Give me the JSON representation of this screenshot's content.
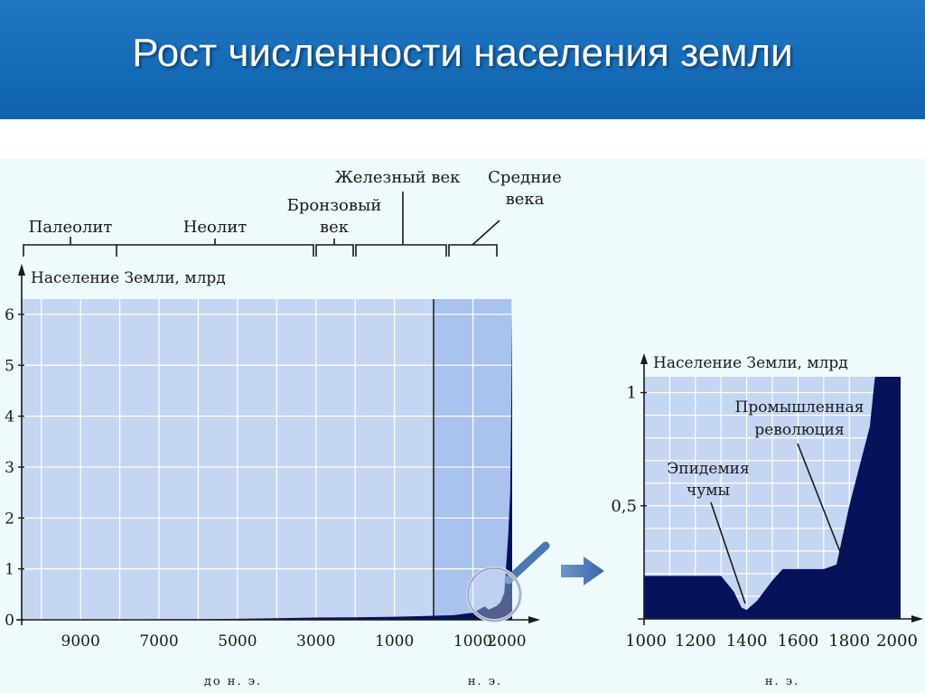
{
  "slide": {
    "title": "Рост численности населения земли"
  },
  "colors": {
    "title_bar": "#1576c0",
    "plot_fill": "#c5d6f3",
    "plot_fill_recent": "#a9c2ee",
    "population_fill": "#06125a",
    "grid": "#ffffff",
    "arrow": "#4b77b3"
  },
  "eras": {
    "paleolithic": "Палеолит",
    "neolithic": "Неолит",
    "bronze_line1": "Бронзовый",
    "bronze_line2": "век",
    "iron": "Железный век",
    "middle_line1": "Средние",
    "middle_line2": "века"
  },
  "chart_data": [
    {
      "type": "area",
      "ylabel": "Население Земли, млрд",
      "xlabel_bc": "до н. э.",
      "xlabel_ad": "н. э.",
      "x_tick_labels": [
        "9000",
        "7000",
        "5000",
        "3000",
        "1000",
        "1000",
        "2000"
      ],
      "y_tick_labels": [
        "0",
        "1",
        "2",
        "3",
        "4",
        "5",
        "6"
      ],
      "ylim": [
        0,
        6.3
      ],
      "x_start": -10500,
      "x_end": 2000,
      "grid": true,
      "highlight_from": 0,
      "series": [
        {
          "x": [
            -10500,
            -9000,
            -8000,
            -7000,
            -6000,
            -5000,
            -4000,
            -3000,
            -2000,
            -1000,
            -500,
            0,
            500,
            1000,
            1300,
            1400,
            1600,
            1700,
            1800,
            1850,
            1900,
            1950,
            1975,
            2000
          ],
          "y": [
            0.004,
            0.005,
            0.006,
            0.01,
            0.01,
            0.02,
            0.03,
            0.045,
            0.05,
            0.06,
            0.07,
            0.08,
            0.09,
            0.14,
            0.26,
            0.2,
            0.27,
            0.34,
            0.53,
            1.1,
            1.7,
            2.5,
            4.0,
            6.1
          ]
        }
      ]
    },
    {
      "type": "area",
      "ylabel": "Население Земли, млрд",
      "xlabel": "н. э.",
      "categories": [
        "1000",
        "1200",
        "1400",
        "1600",
        "1800",
        "2000"
      ],
      "y_tick_labels": [
        "0,5",
        "1"
      ],
      "ylim": [
        0,
        1.07
      ],
      "grid": true,
      "annotations": [
        {
          "line1": "Промышленная",
          "line2": "революция"
        },
        {
          "line1": "Эпидемия",
          "line2": "чумы"
        }
      ],
      "series": [
        {
          "x": [
            1000,
            1200,
            1300,
            1350,
            1380,
            1400,
            1440,
            1500,
            1540,
            1600,
            1700,
            1750,
            1800,
            1850,
            1880,
            1900,
            1930
          ],
          "y": [
            0.19,
            0.19,
            0.19,
            0.12,
            0.05,
            0.04,
            0.08,
            0.17,
            0.22,
            0.22,
            0.22,
            0.24,
            0.5,
            0.72,
            0.85,
            1.07,
            1.07
          ]
        }
      ]
    }
  ]
}
